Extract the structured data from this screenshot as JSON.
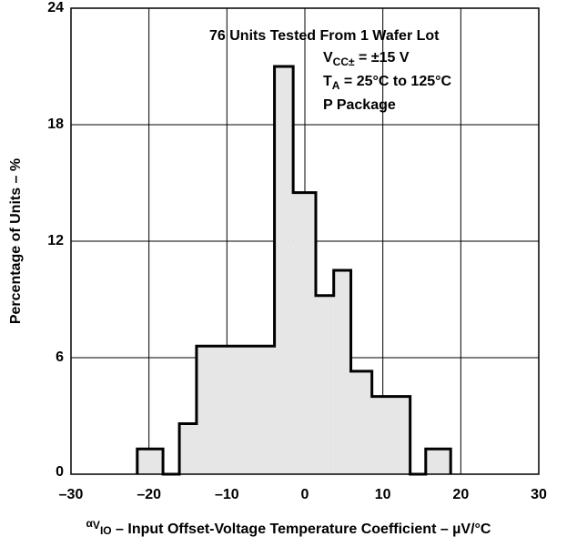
{
  "chart_data": {
    "type": "histogram",
    "annotations": [
      "76 Units Tested From 1 Wafer Lot",
      [
        "V",
        "CC±",
        " = ±15 V"
      ],
      [
        "T",
        "A",
        " = 25°C to 125°C"
      ],
      "P Package"
    ],
    "x_label": [
      "α",
      "V",
      "IO",
      " – Input Offset-Voltage Temperature Coefficient – µV/°C"
    ],
    "y_label": "Percentage of Units – %",
    "bins": [
      -21.5,
      -18.2,
      -16.1,
      -13.9,
      -3.9,
      -1.5,
      1.4,
      3.7,
      5.9,
      8.6,
      13.5,
      15.5,
      18.7
    ],
    "values": [
      1.3,
      0,
      2.6,
      6.6,
      21,
      14.5,
      9.2,
      10.5,
      5.3,
      4.0,
      0,
      1.3
    ],
    "color": "#e6e6e6",
    "xlim": [
      -30,
      30
    ],
    "xticks": [
      {
        "value": -30,
        "label": "–30"
      },
      {
        "value": -20,
        "label": "–20"
      },
      {
        "value": -10,
        "label": "–10"
      },
      0,
      10,
      20,
      30
    ],
    "ylim": [
      0,
      24
    ],
    "yticks": [
      0,
      6,
      12,
      18,
      24
    ],
    "grid": true
  }
}
